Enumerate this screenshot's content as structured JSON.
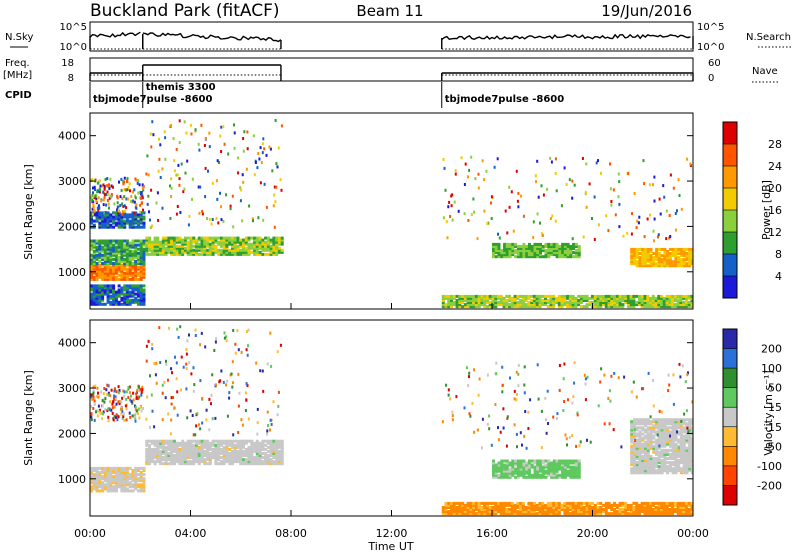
{
  "header": {
    "station": "Buckland Park (fitACF)",
    "beam": "Beam 11",
    "date": "19/Jun/2016"
  },
  "param_panel": {
    "nsky_label": "N.Sky",
    "nsky_ticks": [
      "10^5",
      "10^0"
    ],
    "nsearch_label": "N.Search",
    "nsearch_ticks": [
      "10^5",
      "10^0"
    ],
    "freq_label_1": "Freq.",
    "freq_label_2": "[MHz]",
    "freq_ticks": [
      "18",
      "8"
    ],
    "nave_label": "Nave",
    "nave_ticks": [
      "60",
      "0"
    ],
    "cpid_label": "CPID",
    "cpid_entries": [
      {
        "name": "tbjmode7pulse -8600",
        "start_hour": 0
      },
      {
        "name": "themis 3300",
        "start_hour": 2.1
      },
      {
        "name": "tbjmode7pulse -8600",
        "start_hour": 14
      }
    ]
  },
  "axes": {
    "ylabel": "Slant Range [km]",
    "xlabel": "Time UT",
    "x_ticks": [
      "00:00",
      "04:00",
      "08:00",
      "12:00",
      "16:00",
      "20:00",
      "00:00"
    ],
    "y_ticks": [
      "1000",
      "2000",
      "3000",
      "4000"
    ]
  },
  "colorbars": {
    "power": {
      "label": "Power [dB]",
      "ticks": [
        "28",
        "24",
        "20",
        "16",
        "12",
        "8",
        "4"
      ],
      "colors": [
        "#dd0000",
        "#ff5500",
        "#ff9900",
        "#f2cc00",
        "#8ccf3c",
        "#2e9f2e",
        "#1560c8",
        "#1a1ad8"
      ]
    },
    "velocity": {
      "label": "Velocity [m s⁻¹]",
      "ticks": [
        "200",
        "100",
        "50",
        "15",
        "-15",
        "-50",
        "-100",
        "-200"
      ],
      "colors": [
        "#2a2aa8",
        "#2b6fd8",
        "#2f8f2f",
        "#5fc85f",
        "#c8c8c8",
        "#ffbb33",
        "#ff8800",
        "#ff4400",
        "#dd0000"
      ]
    }
  },
  "chart_data": [
    {
      "type": "heatmap",
      "title": "Power",
      "xlabel": "Time UT",
      "ylabel": "Slant Range [km]",
      "xlim": [
        0,
        24
      ],
      "ylim": [
        180,
        4500
      ],
      "colorbar_label": "Power [dB]",
      "colorbar_range": [
        0,
        32
      ],
      "regions": [
        {
          "x": [
            0,
            2.1
          ],
          "y": [
            800,
            1150
          ],
          "value": 24
        },
        {
          "x": [
            0,
            2.1
          ],
          "y": [
            1150,
            1650
          ],
          "value": 10
        },
        {
          "x": [
            0,
            2.1
          ],
          "y": [
            1950,
            2300
          ],
          "value": 6
        },
        {
          "x": [
            0,
            2.1
          ],
          "y": [
            250,
            700
          ],
          "value": 6
        },
        {
          "x": [
            2.2,
            7.6
          ],
          "y": [
            1350,
            1750
          ],
          "value": 14
        },
        {
          "x": [
            14,
            24
          ],
          "y": [
            200,
            450
          ],
          "value": 14
        },
        {
          "x": [
            16,
            19.5
          ],
          "y": [
            1300,
            1600
          ],
          "value": 12
        },
        {
          "x": [
            21.5,
            24
          ],
          "y": [
            1100,
            1500
          ],
          "value": 20
        }
      ]
    },
    {
      "type": "heatmap",
      "title": "Velocity",
      "xlabel": "Time UT",
      "ylabel": "Slant Range [km]",
      "xlim": [
        0,
        24
      ],
      "ylim": [
        180,
        4500
      ],
      "colorbar_label": "Velocity [m s⁻¹]",
      "colorbar_range": [
        -250,
        250
      ],
      "regions": [
        {
          "x": [
            0,
            2.1
          ],
          "y": [
            700,
            1200
          ],
          "value": -15
        },
        {
          "x": [
            2.2,
            7.6
          ],
          "y": [
            1300,
            1800
          ],
          "value": 0
        },
        {
          "x": [
            14,
            24
          ],
          "y": [
            200,
            450
          ],
          "value": -100
        },
        {
          "x": [
            16,
            19.5
          ],
          "y": [
            1000,
            1400
          ],
          "value": 50
        },
        {
          "x": [
            21.5,
            24
          ],
          "y": [
            1100,
            2300
          ],
          "value": 0
        }
      ]
    }
  ]
}
